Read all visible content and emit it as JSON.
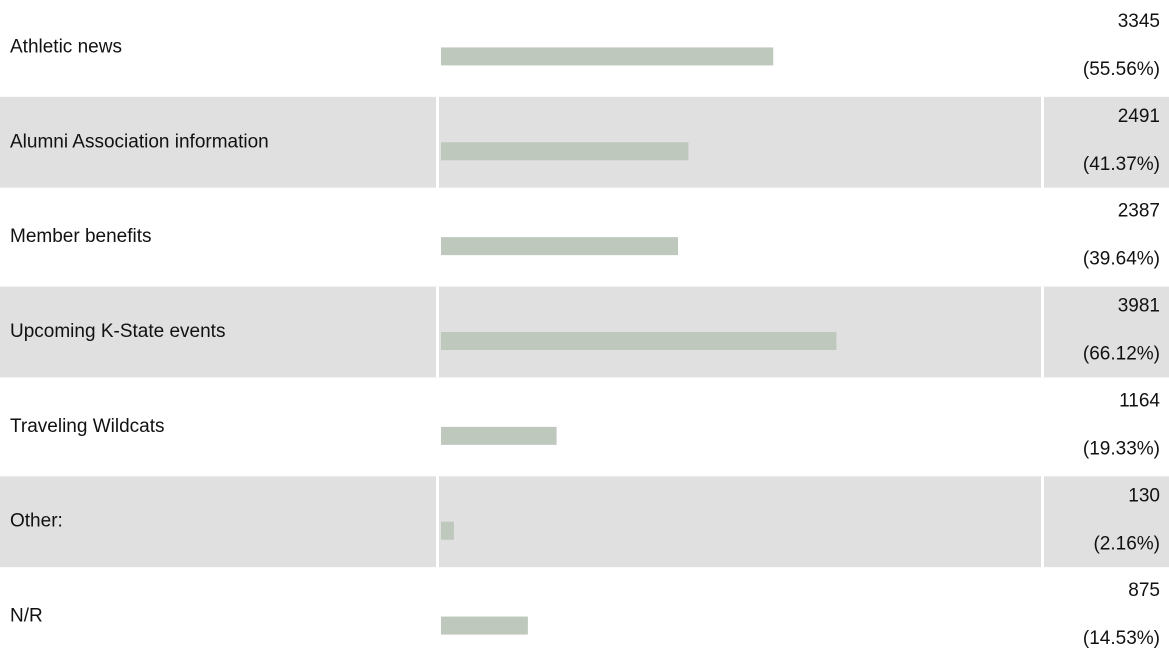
{
  "chart_data": {
    "type": "bar",
    "orientation": "horizontal",
    "categories": [
      "Athletic news",
      "Alumni Association information",
      "Member benefits",
      "Upcoming K-State events",
      "Traveling Wildcats",
      "Other:",
      "N/R"
    ],
    "counts": [
      3345,
      2491,
      2387,
      3981,
      1164,
      130,
      875
    ],
    "values": [
      55.56,
      41.37,
      39.64,
      66.12,
      19.33,
      2.16,
      14.53
    ],
    "value_labels": [
      "(55.56%)",
      "(41.37%)",
      "(39.64%)",
      "(66.12%)",
      "(19.33%)",
      "(2.16%)",
      "(14.53%)"
    ],
    "color": "#bec8bc",
    "xlim": [
      0,
      100
    ]
  }
}
